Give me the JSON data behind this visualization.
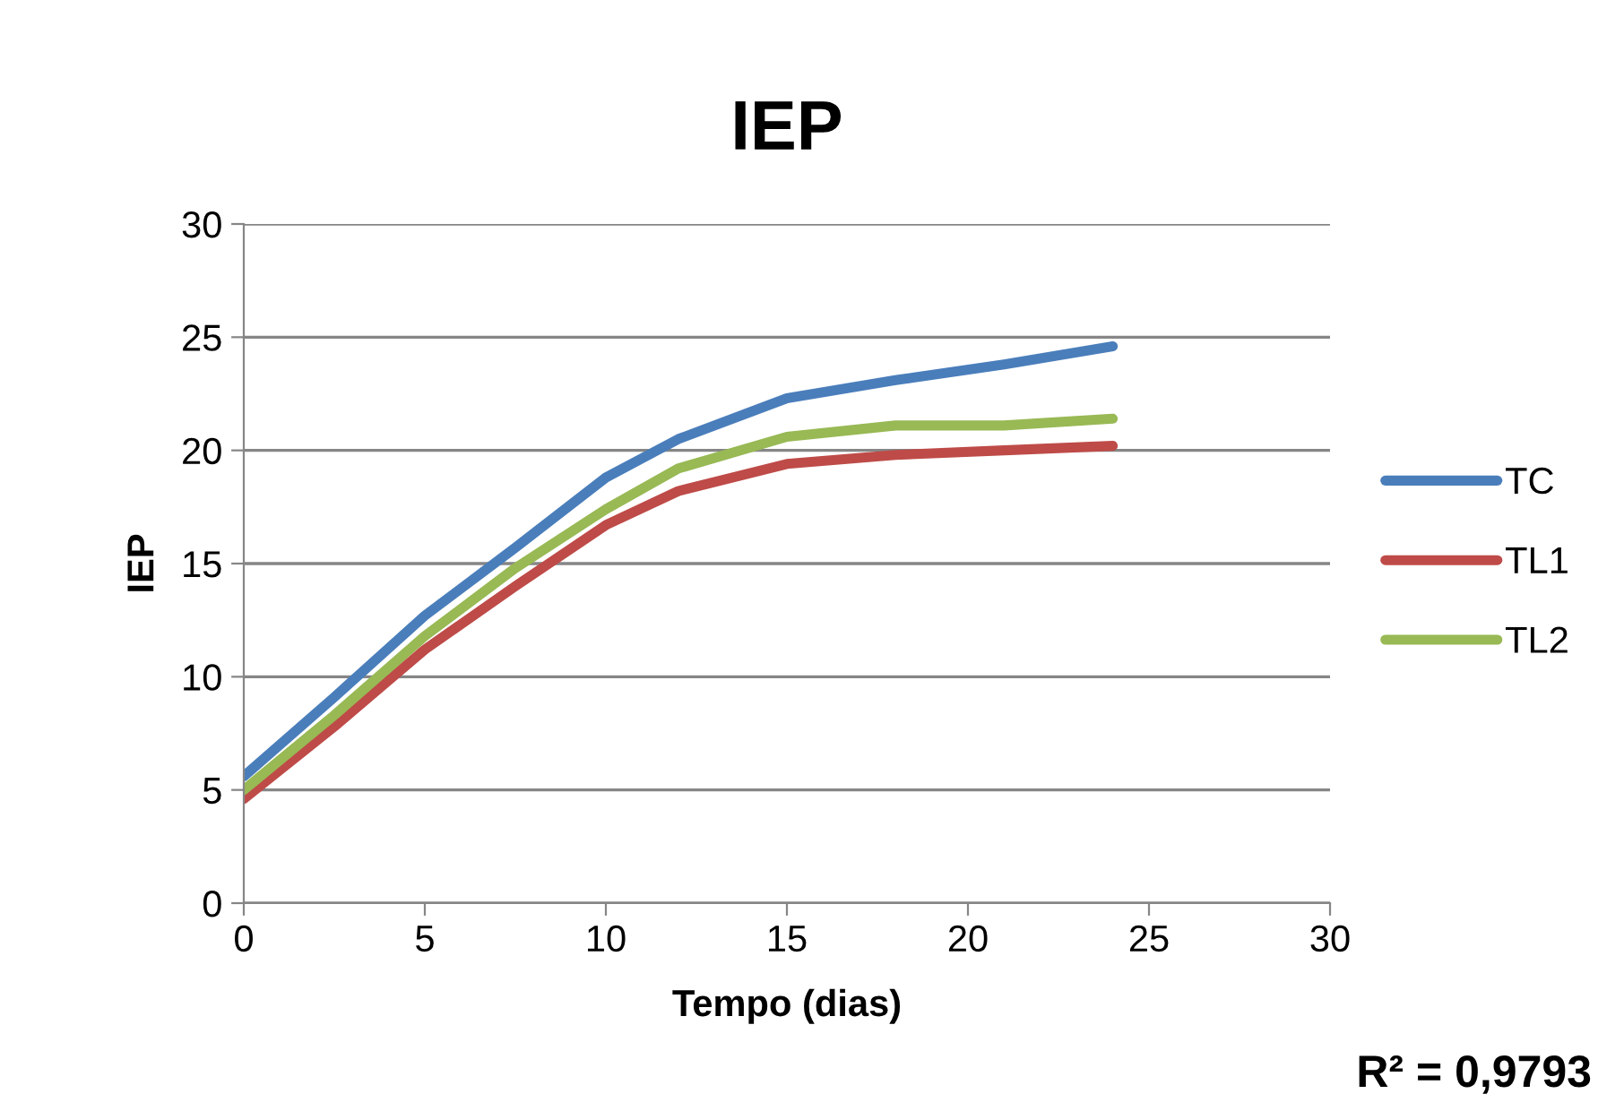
{
  "chart_data": {
    "type": "line",
    "title": "IEP",
    "xlabel": "Tempo (dias)",
    "ylabel": "IEP",
    "x": [
      0,
      2.5,
      5,
      7.5,
      10,
      12,
      15,
      18,
      21,
      24
    ],
    "series": [
      {
        "name": "TC",
        "color": "#4a7ebb",
        "values": [
          5.6,
          9.1,
          12.7,
          15.7,
          18.8,
          20.5,
          22.3,
          23.1,
          23.8,
          24.6
        ]
      },
      {
        "name": "TL1",
        "color": "#be4b48",
        "values": [
          4.6,
          7.8,
          11.2,
          14.0,
          16.7,
          18.2,
          19.4,
          19.8,
          20.0,
          20.2
        ]
      },
      {
        "name": "TL2",
        "color": "#98b954",
        "values": [
          5.0,
          8.3,
          11.8,
          14.8,
          17.4,
          19.2,
          20.6,
          21.1,
          21.1,
          21.4
        ]
      }
    ],
    "xlim": [
      0,
      30
    ],
    "xticks": [
      0,
      5,
      10,
      15,
      20,
      25,
      30
    ],
    "ylim": [
      0,
      30
    ],
    "yticks": [
      0,
      5,
      10,
      15,
      20,
      25,
      30
    ],
    "grid": "y",
    "legend": "right",
    "marker": "none",
    "line_style": "solid",
    "annotations": [
      "R² = 0,9793"
    ]
  }
}
